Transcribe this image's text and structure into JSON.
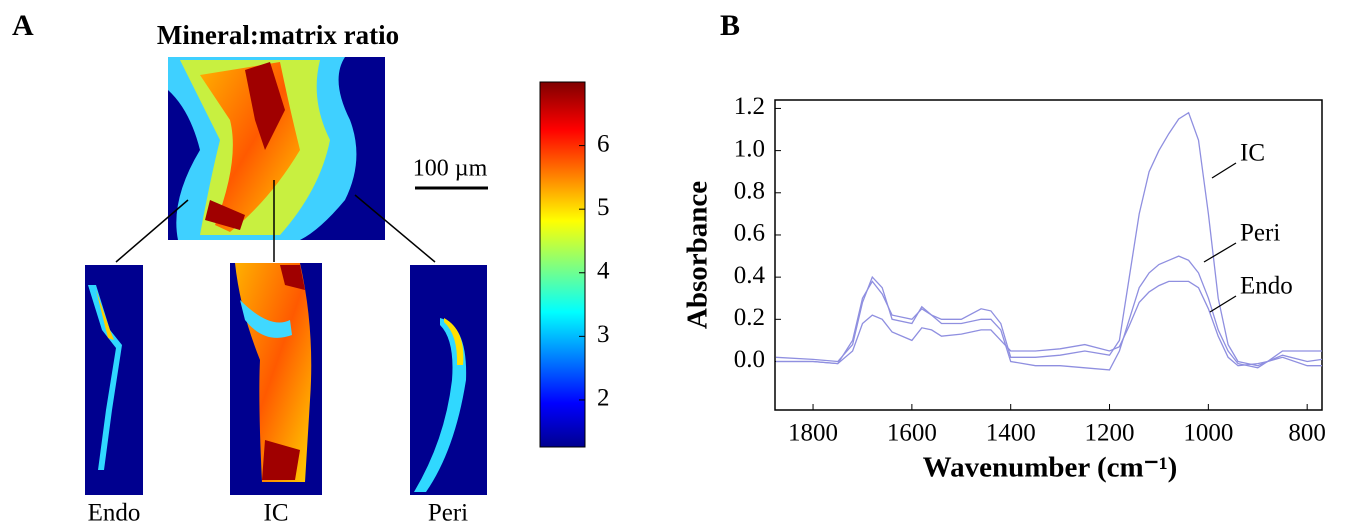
{
  "panel_a": {
    "label": "A",
    "title": "Mineral:matrix ratio",
    "scale_bar": "100 µm",
    "regions": [
      "Endo",
      "IC",
      "Peri"
    ],
    "colorbar": {
      "lim": [
        1.26,
        7.0
      ],
      "ticks": [
        2,
        3,
        4,
        5,
        6
      ]
    }
  },
  "chart_data": {
    "type": "line",
    "label": "B",
    "x_label": "Wavenumber (cm⁻¹)",
    "y_label": "Absorbance",
    "x": [
      1875,
      1800,
      1750,
      1720,
      1700,
      1680,
      1660,
      1640,
      1600,
      1580,
      1560,
      1540,
      1500,
      1460,
      1440,
      1420,
      1400,
      1350,
      1300,
      1250,
      1200,
      1180,
      1160,
      1140,
      1120,
      1100,
      1080,
      1060,
      1040,
      1020,
      1000,
      980,
      960,
      940,
      900,
      880,
      850,
      800,
      770
    ],
    "series": [
      {
        "name": "IC",
        "color": "#8f8fe0",
        "values": [
          0.0,
          0.0,
          -0.01,
          0.1,
          0.3,
          0.38,
          0.32,
          0.22,
          0.2,
          0.25,
          0.22,
          0.2,
          0.2,
          0.25,
          0.24,
          0.18,
          0.02,
          0.02,
          0.03,
          0.05,
          0.03,
          0.1,
          0.4,
          0.7,
          0.9,
          1.0,
          1.08,
          1.15,
          1.18,
          1.05,
          0.7,
          0.3,
          0.08,
          0.0,
          -0.02,
          0.0,
          0.03,
          0.0,
          0.01
        ]
      },
      {
        "name": "Peri",
        "color": "#8f8fe0",
        "values": [
          0.02,
          0.01,
          0.0,
          0.08,
          0.28,
          0.4,
          0.35,
          0.2,
          0.18,
          0.26,
          0.22,
          0.18,
          0.18,
          0.2,
          0.2,
          0.15,
          0.0,
          -0.02,
          -0.02,
          -0.03,
          -0.04,
          0.05,
          0.2,
          0.35,
          0.42,
          0.46,
          0.48,
          0.5,
          0.48,
          0.42,
          0.3,
          0.15,
          0.05,
          -0.01,
          -0.03,
          0.0,
          0.02,
          -0.02,
          -0.02
        ]
      },
      {
        "name": "Endo",
        "color": "#8f8fe0",
        "values": [
          0.0,
          0.0,
          -0.01,
          0.05,
          0.18,
          0.22,
          0.2,
          0.14,
          0.1,
          0.16,
          0.15,
          0.12,
          0.13,
          0.15,
          0.15,
          0.1,
          0.05,
          0.05,
          0.06,
          0.08,
          0.05,
          0.07,
          0.17,
          0.28,
          0.33,
          0.36,
          0.38,
          0.38,
          0.38,
          0.35,
          0.25,
          0.12,
          0.02,
          -0.02,
          -0.01,
          0.0,
          0.05,
          0.05,
          0.05
        ]
      }
    ],
    "xlim": [
      1877,
      770
    ],
    "xticks": [
      1800,
      1600,
      1400,
      1200,
      1000,
      800
    ],
    "ylim": [
      -0.23,
      1.24
    ],
    "yticks": [
      {
        "value": 0,
        "label": "0.0"
      },
      0.2,
      0.4,
      0.6,
      0.8,
      {
        "value": 1,
        "label": "1.0"
      },
      1.2
    ],
    "grid": false
  }
}
